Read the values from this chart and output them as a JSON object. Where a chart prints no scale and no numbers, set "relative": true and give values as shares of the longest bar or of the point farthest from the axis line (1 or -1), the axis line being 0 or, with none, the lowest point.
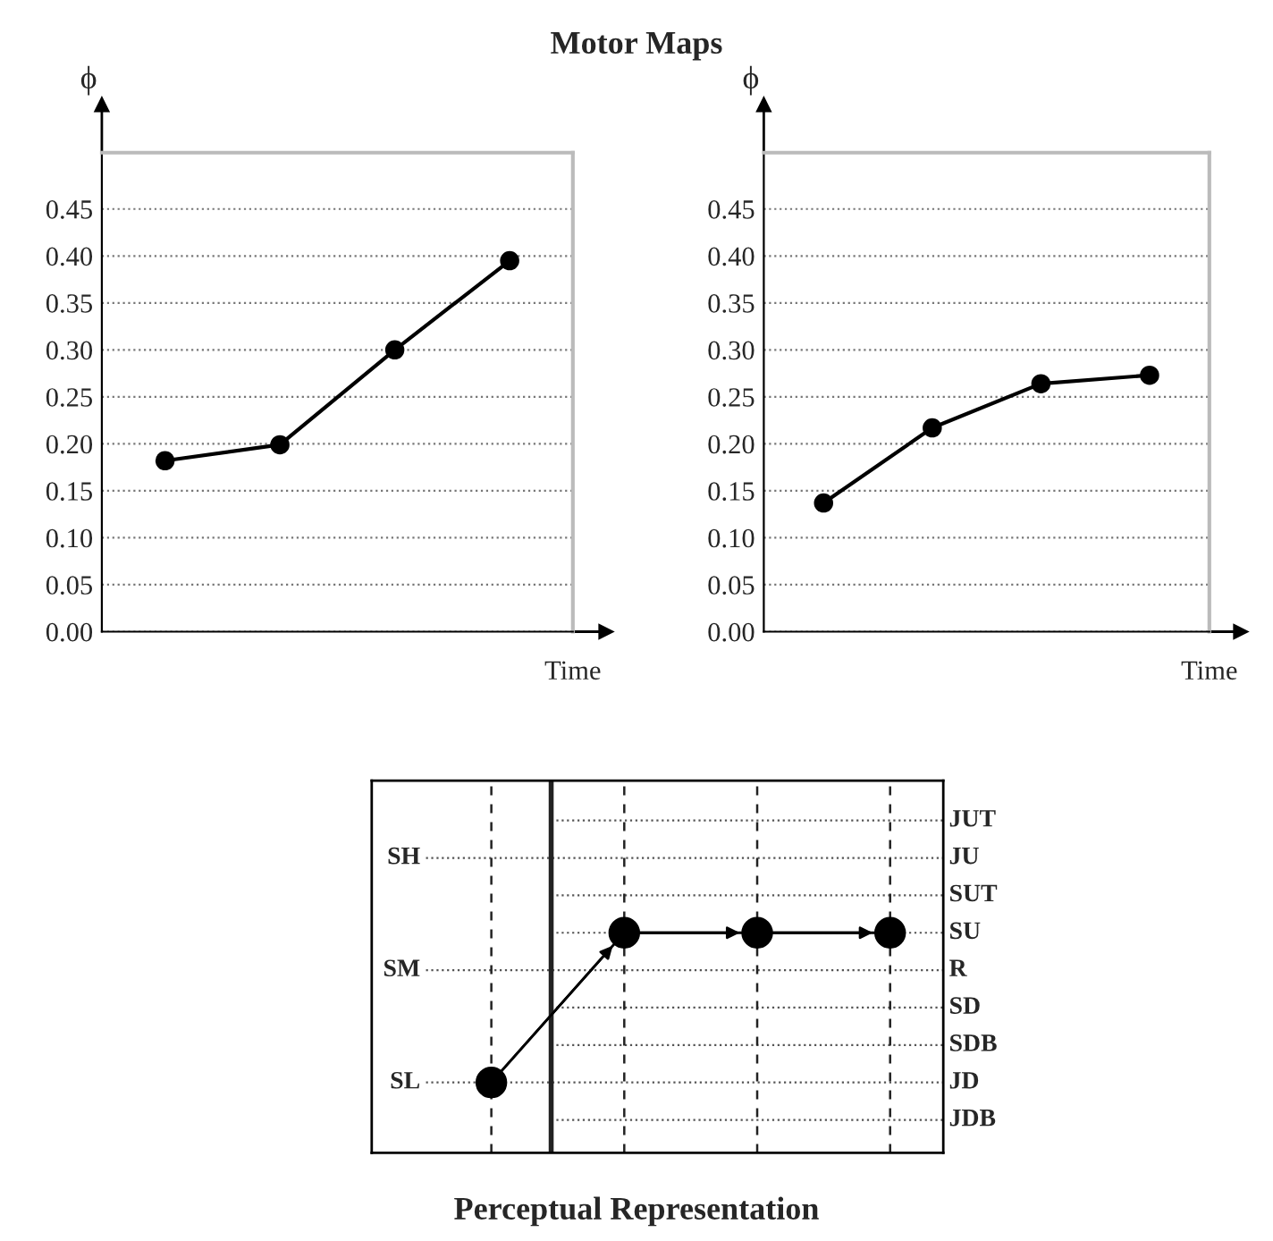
{
  "chart_data": [
    {
      "type": "line",
      "title": "Motor Maps",
      "ylabel": "ϕ",
      "xlabel": "Time",
      "categories": [
        null,
        null,
        null,
        null
      ],
      "series": [
        {
          "color": "#000000",
          "values": [
            0.182,
            0.199,
            0.3,
            0.395
          ]
        }
      ],
      "ylim": [
        0,
        0.51
      ],
      "yticks": [
        {
          "value": 0,
          "label": "0.00"
        },
        {
          "value": 0.05,
          "label": "0.05"
        },
        {
          "value": 0.1,
          "label": "0.10"
        },
        {
          "value": 0.15,
          "label": "0.15"
        },
        {
          "value": 0.2,
          "label": "0.20"
        },
        {
          "value": 0.25,
          "label": "0.25"
        },
        {
          "value": 0.3,
          "label": "0.30"
        },
        {
          "value": 0.35,
          "label": "0.35"
        },
        {
          "value": 0.4,
          "label": "0.40"
        },
        {
          "value": 0.45,
          "label": "0.45"
        }
      ],
      "grid": "y",
      "marker": "circle",
      "line_style": "solid"
    },
    {
      "type": "line",
      "ylabel": "ϕ",
      "xlabel": "Time",
      "categories": [
        null,
        null,
        null,
        null
      ],
      "series": [
        {
          "color": "#000000",
          "values": [
            0.137,
            0.217,
            0.264,
            0.273
          ]
        }
      ],
      "ylim": [
        0,
        0.51
      ],
      "yticks": [
        {
          "value": 0,
          "label": "0.00"
        },
        {
          "value": 0.05,
          "label": "0.05"
        },
        {
          "value": 0.1,
          "label": "0.10"
        },
        {
          "value": 0.15,
          "label": "0.15"
        },
        {
          "value": 0.2,
          "label": "0.20"
        },
        {
          "value": 0.25,
          "label": "0.25"
        },
        {
          "value": 0.3,
          "label": "0.30"
        },
        {
          "value": 0.35,
          "label": "0.35"
        },
        {
          "value": 0.4,
          "label": "0.40"
        },
        {
          "value": 0.45,
          "label": "0.45"
        }
      ],
      "grid": "y",
      "marker": "circle",
      "line_style": "solid"
    },
    {
      "type": "line",
      "title": "Perceptual Representation",
      "categories": [
        null,
        null,
        null,
        null
      ],
      "relative": true,
      "series": [
        {
          "color": "#000000",
          "values": [
            0.32,
            1,
            1,
            1
          ]
        }
      ],
      "annotations": [
        "SH",
        "SM",
        "SL"
      ],
      "ref_lines": [
        {
          "axis": "y",
          "value": 1.51,
          "label": "JUT"
        },
        {
          "axis": "y",
          "value": 1.34,
          "label": "JU"
        },
        {
          "axis": "y",
          "value": 1.17,
          "label": "SUT"
        },
        {
          "axis": "y",
          "value": 1,
          "label": "SU"
        },
        {
          "axis": "y",
          "value": 0.83,
          "label": "R"
        },
        {
          "axis": "y",
          "value": 0.66,
          "label": "SD"
        },
        {
          "axis": "y",
          "value": 0.49,
          "label": "SDB"
        },
        {
          "axis": "y",
          "value": 0.32,
          "label": "JD"
        },
        {
          "axis": "y",
          "value": 0.15,
          "label": "JDB"
        }
      ],
      "grid": "x",
      "marker": "circle",
      "line_style": "solid"
    }
  ]
}
